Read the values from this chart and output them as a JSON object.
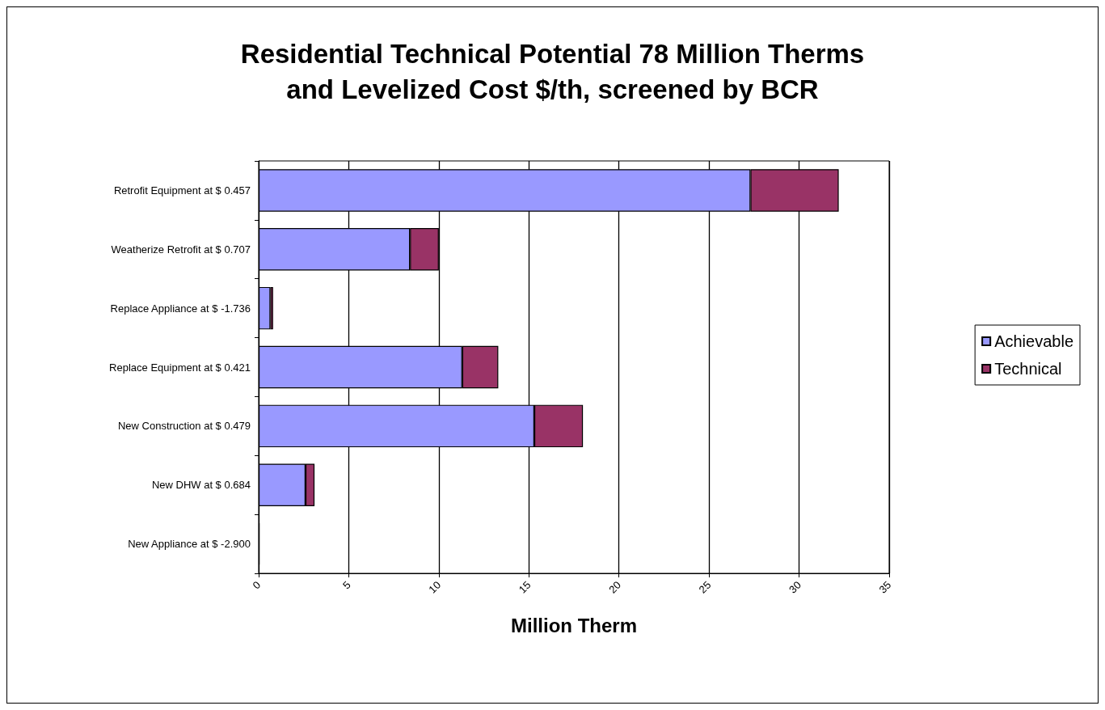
{
  "chart_data": {
    "type": "bar",
    "orientation": "horizontal",
    "stacked": true,
    "title": "Residential Technical Potential 78 Million Therms\nand Levelized Cost $/th, screened by BCR",
    "xlabel": "Million Therm",
    "categories": [
      "Retrofit Equipment at $ 0.457",
      "Weatherize Retrofit at $ 0.707",
      "Replace Appliance at $ -1.736",
      "Replace Equipment at $ 0.421",
      "New Construction at $ 0.479",
      "New DHW at $ 0.684",
      "New Appliance at $ -2.900"
    ],
    "series": [
      {
        "name": "Achievable",
        "color": "#9999ff",
        "values": [
          27.3,
          8.4,
          0.65,
          11.3,
          15.3,
          2.6,
          0.05
        ]
      },
      {
        "name": "Technical",
        "color": "#993366",
        "values": [
          4.9,
          1.6,
          0.15,
          2.0,
          2.7,
          0.5,
          null
        ]
      }
    ],
    "xlim": [
      0,
      35
    ],
    "xticks": [
      0,
      5,
      10,
      15,
      20,
      25,
      30,
      35
    ],
    "grid": "x",
    "legend": "right"
  }
}
